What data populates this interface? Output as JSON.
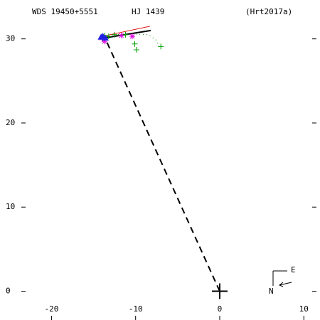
{
  "chart_data": {
    "type": "scatter",
    "title_left": "WDS 19450+5551",
    "title_center": "HJ 1439",
    "title_right": "(Hrt2017a)",
    "compass_e": "E",
    "compass_n": "N",
    "xlim": [
      -25.7,
      11.5
    ],
    "ylim": [
      -3,
      34.2
    ],
    "xticks": [
      -20,
      -10,
      0,
      10
    ],
    "yticks": [
      0,
      10,
      20,
      30
    ],
    "primary": {
      "x": 0,
      "y": 0
    },
    "series": [
      {
        "kind": "dashed",
        "color": "#000000",
        "x": [
          0,
          -13.5
        ],
        "y": [
          0,
          29.8
        ]
      },
      {
        "kind": "dotted",
        "color": "#008800",
        "x": [
          -12.5,
          -10.5,
          -8.5,
          -7.6,
          -7.2
        ],
        "y": [
          30.5,
          30.6,
          30.5,
          29.9,
          29.1
        ]
      },
      {
        "kind": "line",
        "color": "#000000",
        "x": [
          -13.8,
          -8.2
        ],
        "y": [
          30.1,
          31.0
        ]
      },
      {
        "kind": "line",
        "color": "#e00000",
        "x": [
          -13.5,
          -8.3
        ],
        "y": [
          30.4,
          31.5
        ]
      },
      {
        "kind": "plus",
        "color": "#00a000",
        "x": [
          -13.7,
          -13.2,
          -12.5,
          -11.2,
          -10.1,
          -9.9,
          -7.0,
          -13.9
        ],
        "y": [
          30.4,
          30.3,
          30.5,
          30.5,
          29.4,
          28.7,
          29.1,
          30.0
        ]
      },
      {
        "kind": "star",
        "color": "#e000e0",
        "x": [
          -14.0,
          -13.7,
          -11.7,
          -10.4
        ],
        "y": [
          30.1,
          29.7,
          30.4,
          30.3
        ]
      },
      {
        "kind": "triangle",
        "color": "#2020e0",
        "x": [
          -14.1,
          -13.9,
          -13.6
        ],
        "y": [
          30.2,
          30.3,
          30.1
        ]
      }
    ]
  }
}
